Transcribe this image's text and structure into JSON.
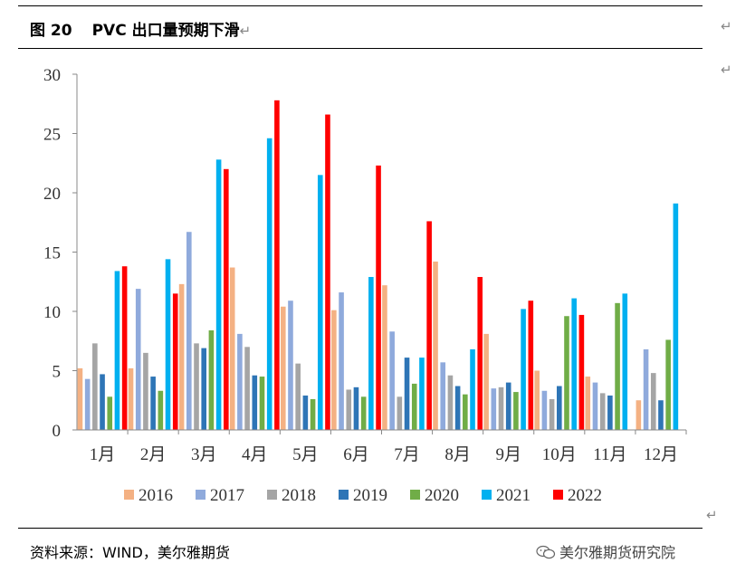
{
  "header": {
    "fig_label": "图 20",
    "title": "PVC 出口量预期下滑",
    "return_mark": "↵"
  },
  "footer": {
    "source": "资料来源：WIND，美尔雅期货",
    "brand": "美尔雅期货研究院"
  },
  "side_marks": [
    "↵",
    "↵",
    "↵"
  ],
  "colors": {
    "2016": "#F4B183",
    "2017": "#8FAADC",
    "2018": "#A5A5A5",
    "2019": "#2E75B6",
    "2020": "#70AD47",
    "2021": "#00B0F0",
    "2022": "#FF0000"
  },
  "chart_data": {
    "type": "bar",
    "title": "",
    "xlabel": "",
    "ylabel": "",
    "ylim": [
      0,
      30
    ],
    "yticks": [
      0,
      5,
      10,
      15,
      20,
      25,
      30
    ],
    "grid": false,
    "legend": "bottom",
    "categories": [
      "1月",
      "2月",
      "3月",
      "4月",
      "5月",
      "6月",
      "7月",
      "8月",
      "9月",
      "10月",
      "11月",
      "12月"
    ],
    "series": [
      {
        "name": "2016",
        "values": [
          5.2,
          5.2,
          12.3,
          13.7,
          10.4,
          10.1,
          12.2,
          14.2,
          8.1,
          5.0,
          4.5,
          2.5
        ]
      },
      {
        "name": "2017",
        "values": [
          4.3,
          11.9,
          16.7,
          8.1,
          10.9,
          11.6,
          8.3,
          5.7,
          3.5,
          3.3,
          4.0,
          6.8
        ]
      },
      {
        "name": "2018",
        "values": [
          7.3,
          6.5,
          7.3,
          7.0,
          5.6,
          3.4,
          2.8,
          4.6,
          3.6,
          2.6,
          3.1,
          4.8
        ]
      },
      {
        "name": "2019",
        "values": [
          4.7,
          4.5,
          6.9,
          4.6,
          2.9,
          3.6,
          6.1,
          3.7,
          4.0,
          3.7,
          2.9,
          2.5
        ]
      },
      {
        "name": "2020",
        "values": [
          2.8,
          3.3,
          8.4,
          4.5,
          2.6,
          2.8,
          3.9,
          3.0,
          3.2,
          9.6,
          10.7,
          7.6
        ]
      },
      {
        "name": "2021",
        "values": [
          13.4,
          14.4,
          22.8,
          24.6,
          21.5,
          12.9,
          6.1,
          6.8,
          10.2,
          11.1,
          11.5,
          19.1
        ]
      },
      {
        "name": "2022",
        "values": [
          13.8,
          11.5,
          22.0,
          27.8,
          26.6,
          22.3,
          17.6,
          12.9,
          10.9,
          9.7,
          null,
          null
        ]
      }
    ]
  }
}
